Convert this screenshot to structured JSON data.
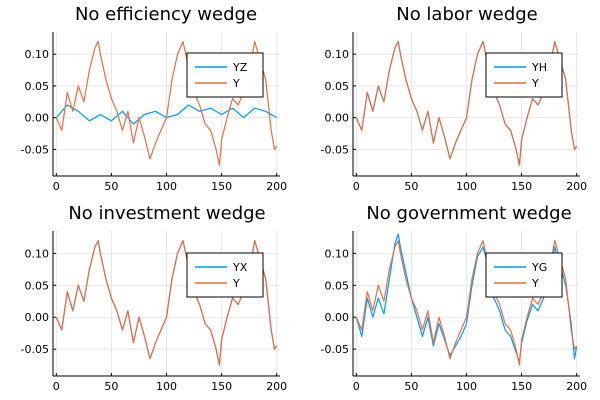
{
  "chart_data": [
    {
      "type": "line",
      "title": "No efficiency wedge",
      "x_ticks": [
        0,
        50,
        100,
        150,
        200
      ],
      "y_ticks": [
        -0.05,
        0.0,
        0.05,
        0.1
      ],
      "y_tick_labels": [
        "-0.05",
        "0.00",
        "0.05",
        "0.10"
      ],
      "xlim": [
        -3,
        203
      ],
      "ylim": [
        -0.092,
        0.135
      ],
      "legend_position": "top-right",
      "grid": true,
      "series": [
        {
          "name": "YZ",
          "color": "#009AFA",
          "x": [
            0,
            10,
            20,
            30,
            40,
            50,
            60,
            70,
            80,
            90,
            100,
            110,
            120,
            130,
            140,
            150,
            160,
            170,
            180,
            190,
            200
          ],
          "values": [
            0.0,
            0.02,
            0.01,
            -0.005,
            0.005,
            -0.005,
            0.01,
            -0.01,
            0.005,
            0.01,
            0.0,
            0.005,
            0.02,
            0.01,
            0.015,
            0.005,
            0.015,
            0.0,
            0.015,
            0.01,
            0.0
          ]
        },
        {
          "name": "Y",
          "color": "#E26F46",
          "x": [
            0,
            5,
            10,
            15,
            20,
            25,
            30,
            35,
            38,
            40,
            45,
            50,
            55,
            60,
            65,
            70,
            75,
            80,
            85,
            90,
            95,
            100,
            105,
            110,
            115,
            120,
            125,
            130,
            135,
            140,
            145,
            148,
            150,
            155,
            160,
            165,
            170,
            175,
            180,
            185,
            190,
            195,
            198,
            200
          ],
          "values": [
            0.0,
            -0.02,
            0.04,
            0.01,
            0.05,
            0.025,
            0.075,
            0.11,
            0.12,
            0.1,
            0.06,
            0.03,
            0.01,
            -0.02,
            0.01,
            -0.04,
            0.0,
            -0.03,
            -0.065,
            -0.04,
            -0.02,
            0.0,
            0.06,
            0.1,
            0.12,
            0.08,
            0.04,
            0.02,
            -0.01,
            -0.02,
            -0.05,
            -0.075,
            -0.035,
            0.0,
            0.03,
            0.02,
            0.04,
            0.07,
            0.12,
            0.09,
            0.06,
            -0.02,
            -0.05,
            -0.045
          ]
        }
      ]
    },
    {
      "type": "line",
      "title": "No labor wedge",
      "x_ticks": [
        0,
        50,
        100,
        150,
        200
      ],
      "y_ticks": [
        -0.05,
        0.0,
        0.05,
        0.1
      ],
      "y_tick_labels": [
        "-0.05",
        "0.00",
        "0.05",
        "0.10"
      ],
      "xlim": [
        -3,
        203
      ],
      "ylim": [
        -0.092,
        0.135
      ],
      "legend_position": "top-right",
      "grid": true,
      "series": [
        {
          "name": "YH",
          "color": "#009AFA",
          "x": [
            0,
            5,
            10,
            15,
            20,
            25,
            30,
            35,
            38,
            40,
            45,
            50,
            55,
            60,
            65,
            70,
            75,
            80,
            85,
            90,
            95,
            100,
            105,
            110,
            115,
            120,
            125,
            130,
            135,
            140,
            145,
            148,
            150,
            155,
            160,
            165,
            170,
            175,
            180,
            185,
            190,
            195,
            198,
            200
          ],
          "values": [
            0.0,
            -0.02,
            0.04,
            0.01,
            0.05,
            0.025,
            0.075,
            0.11,
            0.12,
            0.1,
            0.06,
            0.03,
            0.01,
            -0.02,
            0.01,
            -0.04,
            0.0,
            -0.03,
            -0.065,
            -0.04,
            -0.02,
            0.0,
            0.06,
            0.1,
            0.12,
            0.08,
            0.04,
            0.02,
            -0.01,
            -0.02,
            -0.05,
            -0.075,
            -0.035,
            0.0,
            0.03,
            0.02,
            0.04,
            0.07,
            0.12,
            0.09,
            0.06,
            -0.02,
            -0.05,
            -0.045
          ]
        },
        {
          "name": "Y",
          "color": "#E26F46",
          "x": [
            0,
            5,
            10,
            15,
            20,
            25,
            30,
            35,
            38,
            40,
            45,
            50,
            55,
            60,
            65,
            70,
            75,
            80,
            85,
            90,
            95,
            100,
            105,
            110,
            115,
            120,
            125,
            130,
            135,
            140,
            145,
            148,
            150,
            155,
            160,
            165,
            170,
            175,
            180,
            185,
            190,
            195,
            198,
            200
          ],
          "values": [
            0.0,
            -0.02,
            0.04,
            0.01,
            0.05,
            0.025,
            0.075,
            0.11,
            0.12,
            0.1,
            0.06,
            0.03,
            0.01,
            -0.02,
            0.01,
            -0.04,
            0.0,
            -0.03,
            -0.065,
            -0.04,
            -0.02,
            0.0,
            0.06,
            0.1,
            0.12,
            0.08,
            0.04,
            0.02,
            -0.01,
            -0.02,
            -0.05,
            -0.075,
            -0.035,
            0.0,
            0.03,
            0.02,
            0.04,
            0.07,
            0.12,
            0.09,
            0.06,
            -0.02,
            -0.05,
            -0.045
          ]
        }
      ]
    },
    {
      "type": "line",
      "title": "No investment wedge",
      "x_ticks": [
        0,
        50,
        100,
        150,
        200
      ],
      "y_ticks": [
        -0.05,
        0.0,
        0.05,
        0.1
      ],
      "y_tick_labels": [
        "-0.05",
        "0.00",
        "0.05",
        "0.10"
      ],
      "xlim": [
        -3,
        203
      ],
      "ylim": [
        -0.092,
        0.135
      ],
      "legend_position": "top-right",
      "grid": true,
      "series": [
        {
          "name": "YX",
          "color": "#009AFA",
          "x": [
            0,
            5,
            10,
            15,
            20,
            25,
            30,
            35,
            38,
            40,
            45,
            50,
            55,
            60,
            65,
            70,
            75,
            80,
            85,
            90,
            95,
            100,
            105,
            110,
            115,
            120,
            125,
            130,
            135,
            140,
            145,
            148,
            150,
            155,
            160,
            165,
            170,
            175,
            180,
            185,
            190,
            195,
            198,
            200
          ],
          "values": [
            0.0,
            -0.02,
            0.04,
            0.01,
            0.05,
            0.025,
            0.075,
            0.11,
            0.12,
            0.1,
            0.06,
            0.03,
            0.01,
            -0.02,
            0.01,
            -0.04,
            0.0,
            -0.03,
            -0.065,
            -0.04,
            -0.02,
            0.0,
            0.06,
            0.1,
            0.12,
            0.08,
            0.04,
            0.02,
            -0.01,
            -0.02,
            -0.05,
            -0.075,
            -0.035,
            0.0,
            0.03,
            0.02,
            0.04,
            0.07,
            0.12,
            0.09,
            0.06,
            -0.02,
            -0.05,
            -0.045
          ]
        },
        {
          "name": "Y",
          "color": "#E26F46",
          "x": [
            0,
            5,
            10,
            15,
            20,
            25,
            30,
            35,
            38,
            40,
            45,
            50,
            55,
            60,
            65,
            70,
            75,
            80,
            85,
            90,
            95,
            100,
            105,
            110,
            115,
            120,
            125,
            130,
            135,
            140,
            145,
            148,
            150,
            155,
            160,
            165,
            170,
            175,
            180,
            185,
            190,
            195,
            198,
            200
          ],
          "values": [
            0.0,
            -0.02,
            0.04,
            0.01,
            0.05,
            0.025,
            0.075,
            0.11,
            0.12,
            0.1,
            0.06,
            0.03,
            0.01,
            -0.02,
            0.01,
            -0.04,
            0.0,
            -0.03,
            -0.065,
            -0.04,
            -0.02,
            0.0,
            0.06,
            0.1,
            0.12,
            0.08,
            0.04,
            0.02,
            -0.01,
            -0.02,
            -0.05,
            -0.075,
            -0.035,
            0.0,
            0.03,
            0.02,
            0.04,
            0.07,
            0.12,
            0.09,
            0.06,
            -0.02,
            -0.05,
            -0.045
          ]
        }
      ]
    },
    {
      "type": "line",
      "title": "No government wedge",
      "x_ticks": [
        0,
        50,
        100,
        150,
        200
      ],
      "y_ticks": [
        -0.05,
        0.0,
        0.05,
        0.1
      ],
      "y_tick_labels": [
        "-0.05",
        "0.00",
        "0.05",
        "0.10"
      ],
      "xlim": [
        -3,
        203
      ],
      "ylim": [
        -0.092,
        0.135
      ],
      "legend_position": "top-right",
      "grid": true,
      "series": [
        {
          "name": "YG",
          "color": "#009AFA",
          "x": [
            0,
            5,
            10,
            15,
            20,
            25,
            30,
            35,
            38,
            40,
            45,
            50,
            55,
            60,
            65,
            70,
            75,
            80,
            85,
            90,
            95,
            100,
            105,
            110,
            115,
            120,
            125,
            130,
            135,
            140,
            145,
            148,
            150,
            155,
            160,
            165,
            170,
            175,
            180,
            185,
            190,
            195,
            198,
            200
          ],
          "values": [
            0.0,
            -0.03,
            0.03,
            0.0,
            0.03,
            0.005,
            0.06,
            0.115,
            0.13,
            0.11,
            0.07,
            0.03,
            0.0,
            -0.03,
            0.0,
            -0.045,
            -0.01,
            -0.035,
            -0.06,
            -0.045,
            -0.03,
            -0.01,
            0.05,
            0.095,
            0.11,
            0.08,
            0.03,
            0.01,
            -0.02,
            -0.03,
            -0.055,
            -0.07,
            -0.04,
            -0.005,
            0.02,
            0.01,
            0.03,
            0.06,
            0.11,
            0.08,
            0.05,
            -0.01,
            -0.065,
            -0.045
          ]
        },
        {
          "name": "Y",
          "color": "#E26F46",
          "x": [
            0,
            5,
            10,
            15,
            20,
            25,
            30,
            35,
            38,
            40,
            45,
            50,
            55,
            60,
            65,
            70,
            75,
            80,
            85,
            90,
            95,
            100,
            105,
            110,
            115,
            120,
            125,
            130,
            135,
            140,
            145,
            148,
            150,
            155,
            160,
            165,
            170,
            175,
            180,
            185,
            190,
            195,
            198,
            200
          ],
          "values": [
            0.0,
            -0.02,
            0.04,
            0.01,
            0.05,
            0.025,
            0.075,
            0.11,
            0.12,
            0.1,
            0.06,
            0.03,
            0.01,
            -0.02,
            0.01,
            -0.04,
            0.0,
            -0.03,
            -0.065,
            -0.04,
            -0.02,
            0.0,
            0.06,
            0.1,
            0.12,
            0.08,
            0.04,
            0.02,
            -0.01,
            -0.02,
            -0.05,
            -0.075,
            -0.035,
            0.0,
            0.03,
            0.02,
            0.04,
            0.07,
            0.12,
            0.09,
            0.06,
            -0.02,
            -0.05,
            -0.045
          ]
        }
      ]
    }
  ]
}
